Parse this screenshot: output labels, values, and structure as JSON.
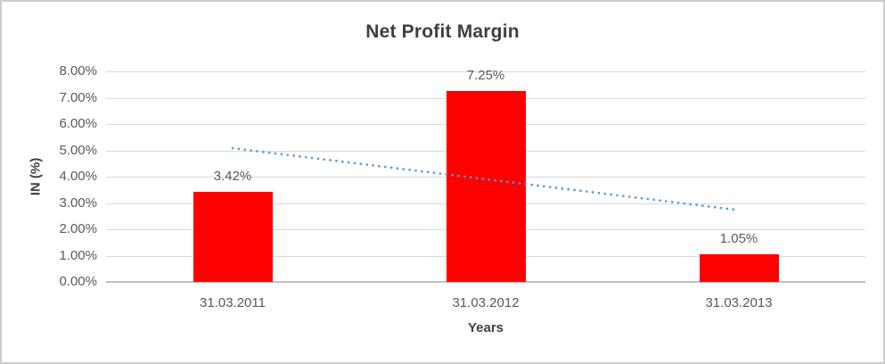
{
  "window": {
    "background_color": "#ffffff",
    "border_color": "#cdcdcd"
  },
  "chart_data": {
    "type": "bar",
    "title": "Net Profit Margin",
    "categories": [
      "31.03.2011",
      "31.03.2012",
      "31.03.2013"
    ],
    "values": [
      3.42,
      7.25,
      1.05
    ],
    "data_labels": [
      "3.42%",
      "7.25%",
      "1.05%"
    ],
    "xlabel": "Years",
    "ylabel": "IN (%)",
    "ylim": [
      0,
      8
    ],
    "ytick_step": 1,
    "ytick_labels": [
      "0.00%",
      "1.00%",
      "2.00%",
      "3.00%",
      "4.00%",
      "5.00%",
      "6.00%",
      "7.00%",
      "8.00%"
    ],
    "grid": true,
    "legend": "none",
    "bar_color": "#ff0000",
    "gridline_color": "#d9d9d9",
    "axis_line_color": "#bfbfbf",
    "title_color": "#3f3f3f",
    "label_color": "#595959",
    "trendline": {
      "style": "dotted",
      "color": "#5b9bd5",
      "start_value": 5.08,
      "end_value": 2.74,
      "start_category_index": 0,
      "end_category_index": 2
    }
  }
}
